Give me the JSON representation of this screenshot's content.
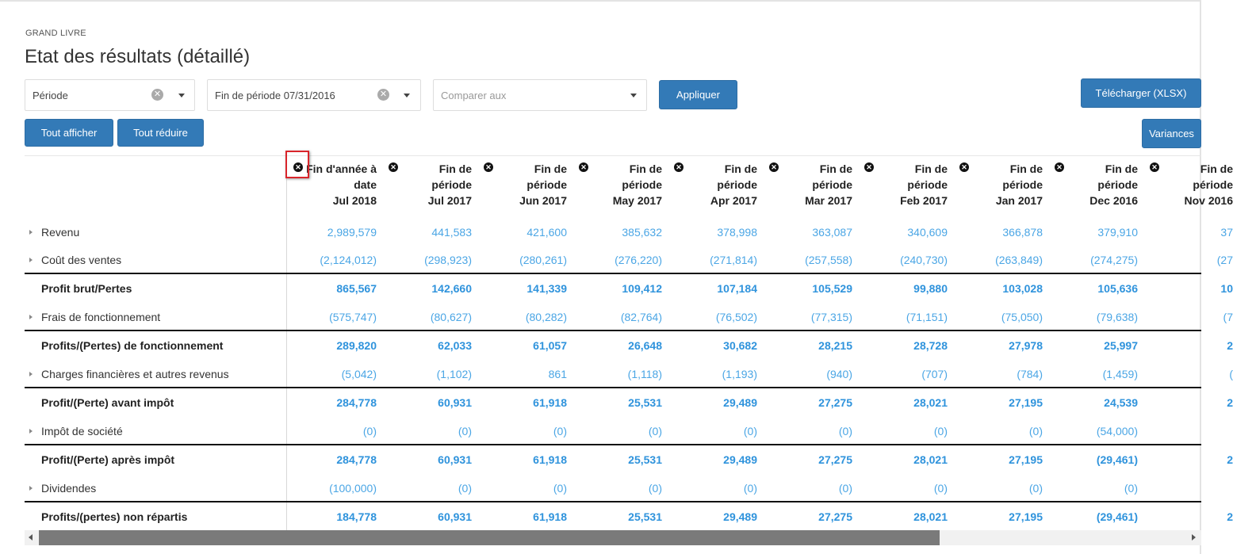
{
  "header": {
    "breadcrumb": "GRAND LIVRE",
    "title": "Etat des résultats (détaillé)"
  },
  "filters": {
    "period": {
      "value": "Période",
      "clear_icon": "clear-icon"
    },
    "end_period": {
      "value": "Fin de période 07/31/2016",
      "clear_icon": "clear-icon"
    },
    "compare": {
      "placeholder": "Comparer aux"
    }
  },
  "toolbar": {
    "apply_label": "Appliquer",
    "download_label": "Télécharger (XLSX)",
    "expand_all_label": "Tout afficher",
    "collapse_all_label": "Tout réduire",
    "variances_label": "Variances"
  },
  "columns": [
    {
      "line1": "Fin d'année à",
      "line2": "date",
      "line3": "Jul 2018"
    },
    {
      "line1": "Fin de",
      "line2": "période",
      "line3": "Jul 2017"
    },
    {
      "line1": "Fin de",
      "line2": "période",
      "line3": "Jun 2017"
    },
    {
      "line1": "Fin de",
      "line2": "période",
      "line3": "May 2017"
    },
    {
      "line1": "Fin de",
      "line2": "période",
      "line3": "Apr 2017"
    },
    {
      "line1": "Fin de",
      "line2": "période",
      "line3": "Mar 2017"
    },
    {
      "line1": "Fin de",
      "line2": "période",
      "line3": "Feb 2017"
    },
    {
      "line1": "Fin de",
      "line2": "période",
      "line3": "Jan 2017"
    },
    {
      "line1": "Fin de",
      "line2": "période",
      "line3": "Dec 2016"
    },
    {
      "line1": "Fin de",
      "line2": "période",
      "line3": "Nov 2016"
    }
  ],
  "rows": [
    {
      "label": "Revenu",
      "expandable": true,
      "total": false,
      "values": [
        "2,989,579",
        "441,583",
        "421,600",
        "385,632",
        "378,998",
        "363,087",
        "340,609",
        "366,878",
        "379,910",
        "37"
      ]
    },
    {
      "label": "Coût des ventes",
      "expandable": true,
      "total": false,
      "values": [
        "(2,124,012)",
        "(298,923)",
        "(280,261)",
        "(276,220)",
        "(271,814)",
        "(257,558)",
        "(240,730)",
        "(263,849)",
        "(274,275)",
        "(27"
      ]
    },
    {
      "label": "Profit brut/Pertes",
      "expandable": false,
      "total": true,
      "values": [
        "865,567",
        "142,660",
        "141,339",
        "109,412",
        "107,184",
        "105,529",
        "99,880",
        "103,028",
        "105,636",
        "10"
      ]
    },
    {
      "label": "Frais de fonctionnement",
      "expandable": true,
      "total": false,
      "values": [
        "(575,747)",
        "(80,627)",
        "(80,282)",
        "(82,764)",
        "(76,502)",
        "(77,315)",
        "(71,151)",
        "(75,050)",
        "(79,638)",
        "(7"
      ]
    },
    {
      "label": "Profits/(Pertes) de fonctionnement",
      "expandable": false,
      "total": true,
      "values": [
        "289,820",
        "62,033",
        "61,057",
        "26,648",
        "30,682",
        "28,215",
        "28,728",
        "27,978",
        "25,997",
        "2"
      ]
    },
    {
      "label": "Charges financières et autres revenus",
      "expandable": true,
      "total": false,
      "values": [
        "(5,042)",
        "(1,102)",
        "861",
        "(1,118)",
        "(1,193)",
        "(940)",
        "(707)",
        "(784)",
        "(1,459)",
        "("
      ]
    },
    {
      "label": "Profit/(Perte) avant impôt",
      "expandable": false,
      "total": true,
      "values": [
        "284,778",
        "60,931",
        "61,918",
        "25,531",
        "29,489",
        "27,275",
        "28,021",
        "27,195",
        "24,539",
        "2"
      ]
    },
    {
      "label": "Impôt de société",
      "expandable": true,
      "total": false,
      "values": [
        "(0)",
        "(0)",
        "(0)",
        "(0)",
        "(0)",
        "(0)",
        "(0)",
        "(0)",
        "(54,000)",
        ""
      ]
    },
    {
      "label": "Profit/(Perte) après impôt",
      "expandable": false,
      "total": true,
      "values": [
        "284,778",
        "60,931",
        "61,918",
        "25,531",
        "29,489",
        "27,275",
        "28,021",
        "27,195",
        "(29,461)",
        "2"
      ]
    },
    {
      "label": "Dividendes",
      "expandable": true,
      "total": false,
      "values": [
        "(100,000)",
        "(0)",
        "(0)",
        "(0)",
        "(0)",
        "(0)",
        "(0)",
        "(0)",
        "(0)",
        ""
      ]
    },
    {
      "label": "Profits/(pertes) non répartis",
      "expandable": false,
      "total": true,
      "values": [
        "184,778",
        "60,931",
        "61,918",
        "25,531",
        "29,489",
        "27,275",
        "28,021",
        "27,195",
        "(29,461)",
        "2"
      ]
    }
  ],
  "colors": {
    "primary_button": "#337ab7",
    "value_text": "#4ba6e5",
    "total_value_text": "#2f93dc",
    "highlight_box": "#d9252b"
  }
}
